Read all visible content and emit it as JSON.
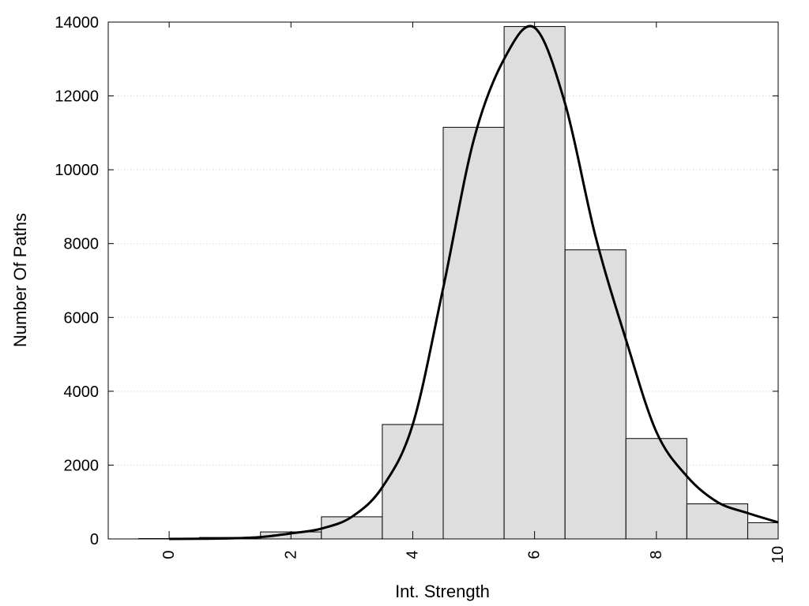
{
  "chart_data": {
    "type": "bar",
    "xlabel": "Int. Strength",
    "ylabel": "Number Of Paths",
    "xlim": [
      -1,
      10
    ],
    "ylim": [
      0,
      14000
    ],
    "x_ticks": [
      0,
      2,
      4,
      6,
      8,
      10
    ],
    "y_ticks": [
      0,
      2000,
      4000,
      6000,
      8000,
      10000,
      12000,
      14000
    ],
    "grid": "horizontal-dotted",
    "bar_color": "#dedede",
    "bar_edge_color": "#000000",
    "bin_width": 1,
    "bins": [
      {
        "x": 0,
        "value": 10
      },
      {
        "x": 1,
        "value": 40
      },
      {
        "x": 2,
        "value": 190
      },
      {
        "x": 3,
        "value": 600
      },
      {
        "x": 4,
        "value": 3100
      },
      {
        "x": 5,
        "value": 11150
      },
      {
        "x": 6,
        "value": 13880
      },
      {
        "x": 7,
        "value": 7830
      },
      {
        "x": 8,
        "value": 2720
      },
      {
        "x": 9,
        "value": 950
      },
      {
        "x": 10,
        "value": 440
      }
    ],
    "curve": {
      "color": "#000000",
      "points": [
        [
          0,
          0
        ],
        [
          0.5,
          5
        ],
        [
          1,
          15
        ],
        [
          1.5,
          50
        ],
        [
          2,
          150
        ],
        [
          2.5,
          280
        ],
        [
          3,
          600
        ],
        [
          3.5,
          1400
        ],
        [
          4,
          3100
        ],
        [
          4.5,
          6800
        ],
        [
          5,
          10800
        ],
        [
          5.5,
          13000
        ],
        [
          6,
          13850
        ],
        [
          6.5,
          11800
        ],
        [
          7,
          8200
        ],
        [
          7.5,
          5400
        ],
        [
          8,
          2900
        ],
        [
          8.5,
          1700
        ],
        [
          9,
          1000
        ],
        [
          9.5,
          700
        ],
        [
          10,
          450
        ]
      ]
    }
  }
}
